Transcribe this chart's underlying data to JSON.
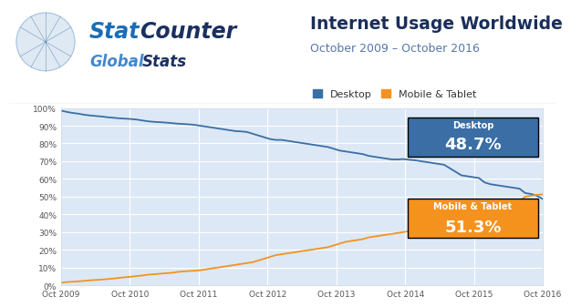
{
  "title": "Internet Usage Worldwide",
  "subtitle": "October 2009 – October 2016",
  "bg_color": "#ffffff",
  "plot_bg_color": "#dce8f5",
  "header_border_color": "#c8daea",
  "desktop_color": "#3a6ea5",
  "mobile_color": "#f5921e",
  "desktop_label": "Desktop",
  "mobile_label": "Mobile & Tablet",
  "desktop_final": "48.7%",
  "mobile_final": "51.3%",
  "title_color": "#1a2e5a",
  "subtitle_color": "#5577aa",
  "stat_color": "#1a6db5",
  "stat2_color": "#1a3060",
  "global_color": "#4488cc",
  "stats_color": "#1a3060",
  "yticks": [
    0,
    10,
    20,
    30,
    40,
    50,
    60,
    70,
    80,
    90,
    100
  ],
  "xtick_labels": [
    "Oct 2009",
    "Oct 2010",
    "Oct 2011",
    "Oct 2012",
    "Oct 2013",
    "Oct 2014",
    "Oct 2015",
    "Oct 2016"
  ],
  "desktop_data": [
    98.5,
    97.8,
    97.2,
    96.8,
    96.2,
    95.8,
    95.5,
    95.2,
    94.8,
    94.5,
    94.2,
    94.0,
    93.8,
    93.5,
    93.0,
    92.5,
    92.2,
    92.0,
    91.8,
    91.5,
    91.2,
    91.0,
    90.8,
    90.5,
    90.0,
    89.5,
    89.0,
    88.5,
    88.0,
    87.5,
    87.0,
    86.8,
    86.5,
    85.5,
    84.5,
    83.5,
    82.5,
    82.0,
    82.0,
    81.5,
    81.0,
    80.5,
    80.0,
    79.5,
    79.0,
    78.5,
    78.0,
    77.0,
    76.0,
    75.5,
    75.0,
    74.5,
    74.0,
    73.0,
    72.5,
    72.0,
    71.5,
    71.0,
    71.0,
    71.2,
    70.8,
    70.5,
    70.0,
    69.5,
    69.0,
    68.5,
    68.0,
    66.0,
    64.0,
    62.0,
    61.5,
    61.0,
    60.5,
    58.0,
    57.0,
    56.5,
    56.0,
    55.5,
    55.0,
    54.5,
    52.0,
    51.5,
    50.5,
    48.7
  ],
  "mobile_data": [
    1.5,
    1.8,
    2.0,
    2.2,
    2.5,
    2.8,
    3.0,
    3.2,
    3.5,
    3.8,
    4.2,
    4.5,
    4.8,
    5.2,
    5.5,
    6.0,
    6.2,
    6.5,
    6.8,
    7.0,
    7.5,
    7.8,
    8.0,
    8.2,
    8.5,
    9.0,
    9.5,
    10.0,
    10.5,
    11.0,
    11.5,
    12.0,
    12.5,
    13.0,
    14.0,
    15.0,
    16.0,
    17.0,
    17.5,
    18.0,
    18.5,
    19.0,
    19.5,
    20.0,
    20.5,
    21.0,
    21.5,
    22.5,
    23.5,
    24.5,
    25.0,
    25.5,
    26.0,
    27.0,
    27.5,
    28.0,
    28.5,
    29.0,
    29.5,
    30.0,
    30.5,
    31.0,
    31.5,
    32.0,
    32.5,
    33.0,
    33.5,
    36.0,
    38.0,
    39.5,
    40.0,
    40.5,
    41.0,
    44.0,
    45.0,
    45.5,
    46.0,
    46.5,
    47.0,
    47.5,
    50.0,
    50.5,
    51.0,
    51.3
  ]
}
